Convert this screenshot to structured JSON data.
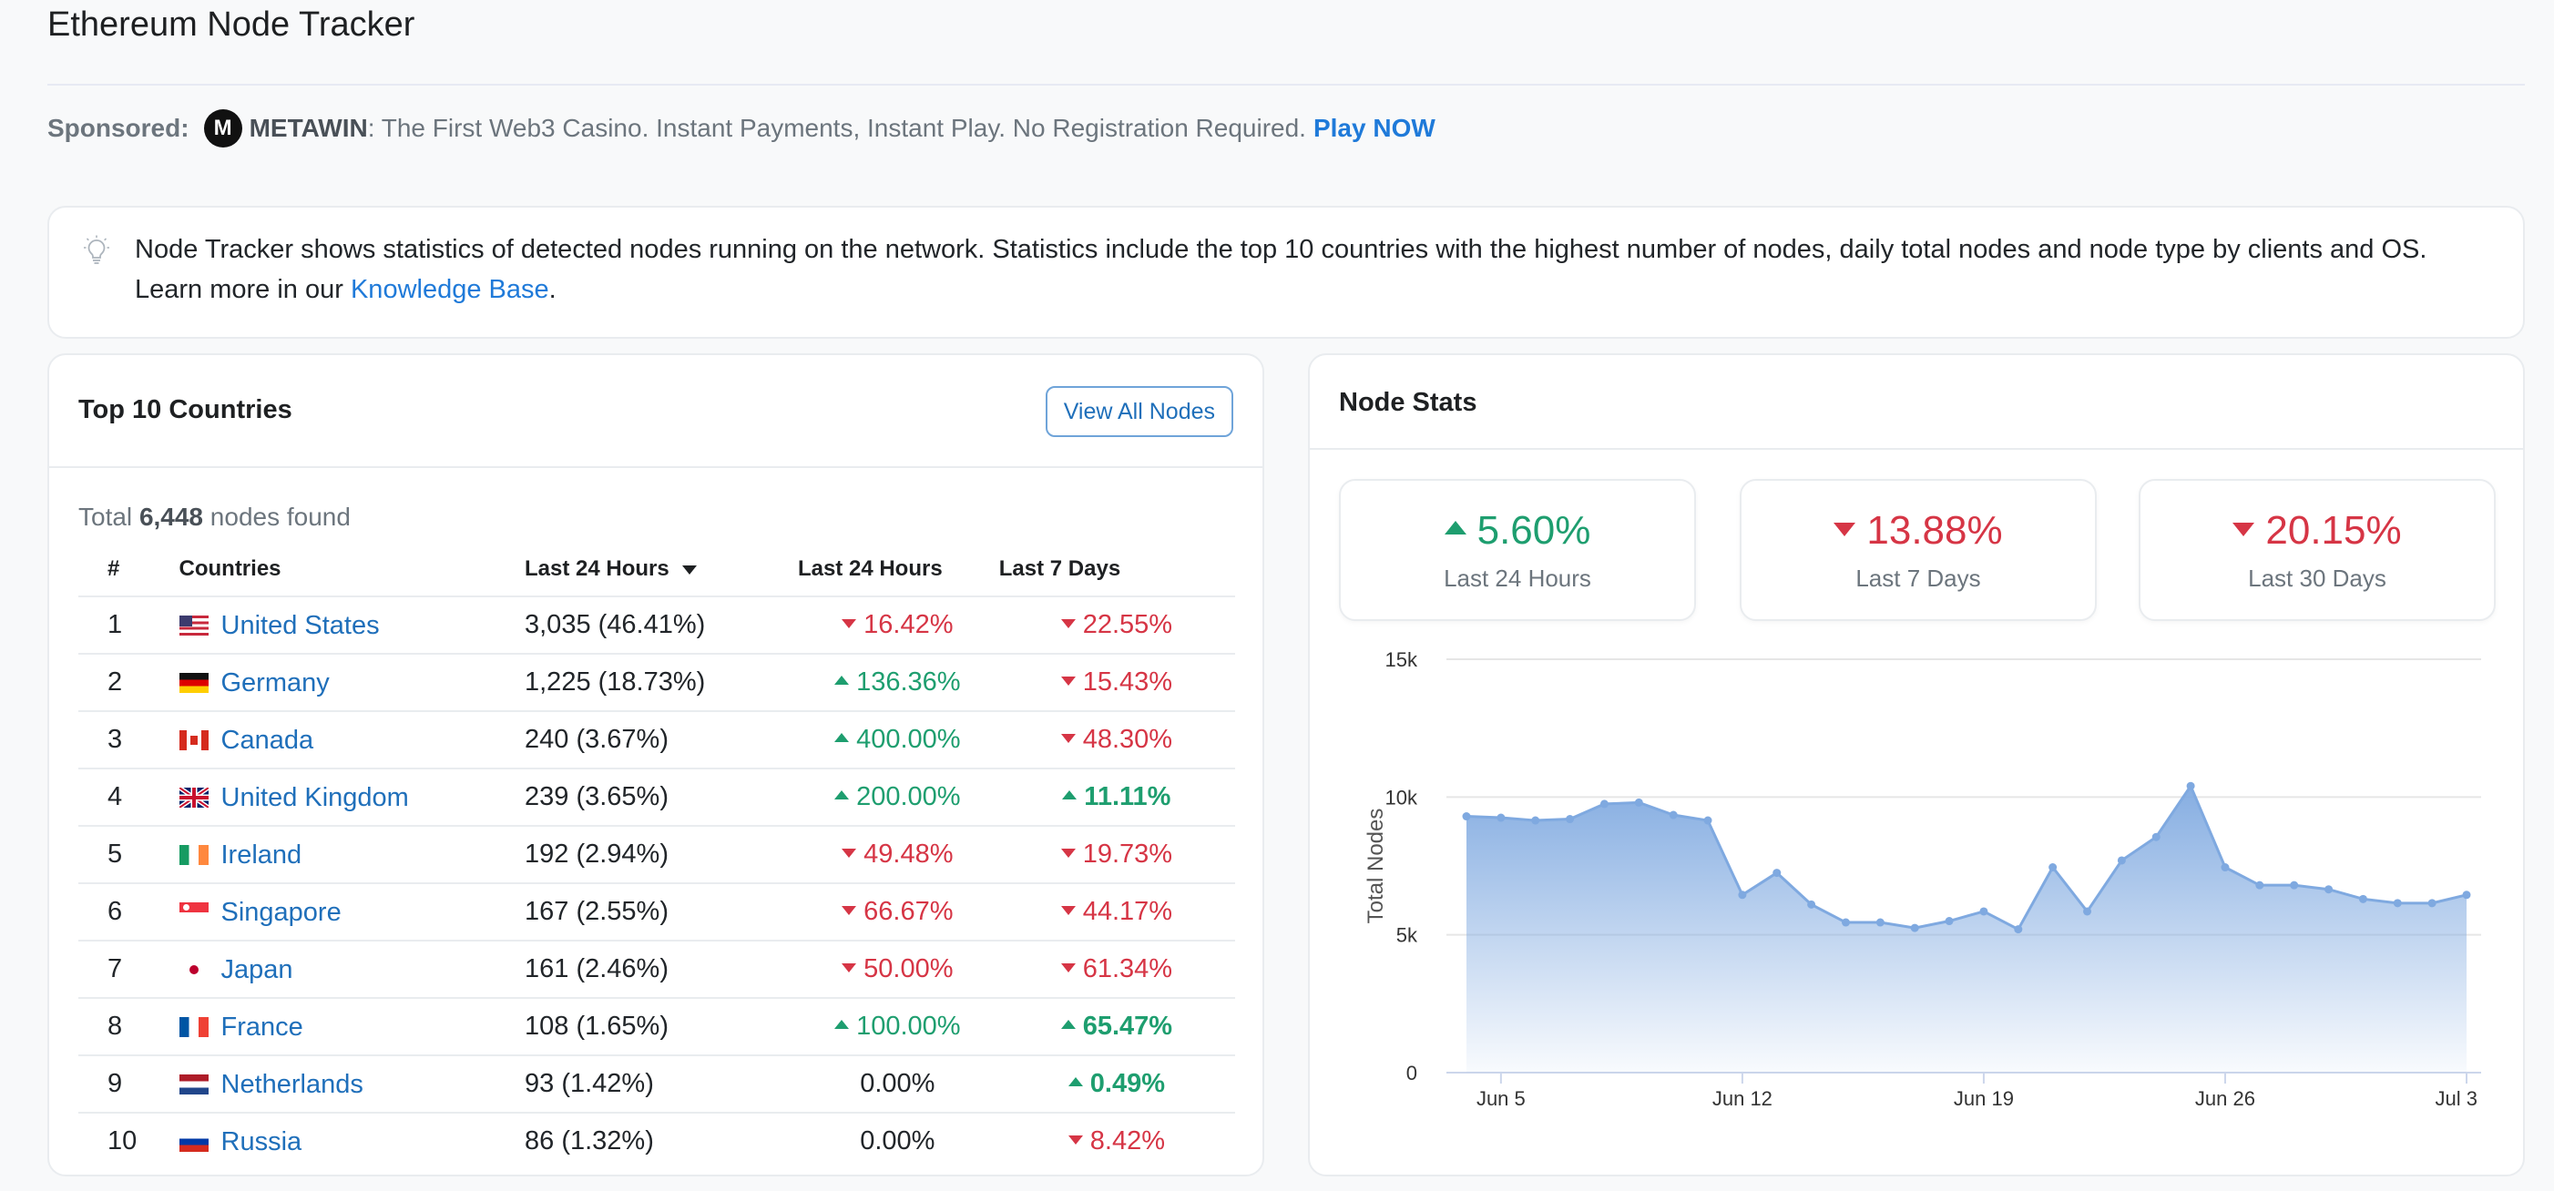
{
  "page": {
    "title": "Ethereum Node Tracker"
  },
  "sponsor": {
    "label": "Sponsored:",
    "logo_letter": "M",
    "brand": "METAWIN",
    "text": ": The First Web3 Casino. Instant Payments, Instant Play. No Registration Required.",
    "cta": "Play NOW"
  },
  "info": {
    "icon": "lightbulb-icon",
    "text_before": "Node Tracker shows statistics of detected nodes running on the network. Statistics include the top 10 countries with the highest number of nodes, daily total nodes and node type by clients and OS. Learn more in our ",
    "link": "Knowledge Base",
    "text_after": "."
  },
  "countries_card": {
    "title": "Top 10 Countries",
    "button": "View All Nodes",
    "total_prefix": "Total ",
    "total_count": "6,448",
    "total_suffix": " nodes found",
    "headers": {
      "num": "#",
      "country": "Countries",
      "nodes": "Last 24 Hours",
      "pct24": "Last 24 Hours",
      "pct7": "Last 7 Days"
    },
    "rows": [
      {
        "num": "1",
        "country": "United States",
        "flag": "us",
        "nodes": "3,035 (46.41%)",
        "p24": "16.42%",
        "p24_dir": "down",
        "p7": "22.55%",
        "p7_dir": "down"
      },
      {
        "num": "2",
        "country": "Germany",
        "flag": "de",
        "nodes": "1,225 (18.73%)",
        "p24": "136.36%",
        "p24_dir": "up",
        "p7": "15.43%",
        "p7_dir": "down"
      },
      {
        "num": "3",
        "country": "Canada",
        "flag": "ca",
        "nodes": "240 (3.67%)",
        "p24": "400.00%",
        "p24_dir": "up",
        "p7": "48.30%",
        "p7_dir": "down"
      },
      {
        "num": "4",
        "country": "United Kingdom",
        "flag": "gb",
        "nodes": "239 (3.65%)",
        "p24": "200.00%",
        "p24_dir": "up",
        "p7": "11.11%",
        "p7_dir": "up"
      },
      {
        "num": "5",
        "country": "Ireland",
        "flag": "ie",
        "nodes": "192 (2.94%)",
        "p24": "49.48%",
        "p24_dir": "down",
        "p7": "19.73%",
        "p7_dir": "down"
      },
      {
        "num": "6",
        "country": "Singapore",
        "flag": "sg",
        "nodes": "167 (2.55%)",
        "p24": "66.67%",
        "p24_dir": "down",
        "p7": "44.17%",
        "p7_dir": "down"
      },
      {
        "num": "7",
        "country": "Japan",
        "flag": "jp",
        "nodes": "161 (2.46%)",
        "p24": "50.00%",
        "p24_dir": "down",
        "p7": "61.34%",
        "p7_dir": "down"
      },
      {
        "num": "8",
        "country": "France",
        "flag": "fr",
        "nodes": "108 (1.65%)",
        "p24": "100.00%",
        "p24_dir": "up",
        "p7": "65.47%",
        "p7_dir": "up"
      },
      {
        "num": "9",
        "country": "Netherlands",
        "flag": "nl",
        "nodes": "93 (1.42%)",
        "p24": "0.00%",
        "p24_dir": "flat",
        "p7": "0.49%",
        "p7_dir": "up"
      },
      {
        "num": "10",
        "country": "Russia",
        "flag": "ru",
        "nodes": "86 (1.32%)",
        "p24": "0.00%",
        "p24_dir": "flat",
        "p7": "8.42%",
        "p7_dir": "down"
      }
    ]
  },
  "stats_card": {
    "title": "Node Stats",
    "stats": [
      {
        "value": "5.60%",
        "dir": "up",
        "label": "Last 24 Hours"
      },
      {
        "value": "13.88%",
        "dir": "down",
        "label": "Last 7 Days"
      },
      {
        "value": "20.15%",
        "dir": "down",
        "label": "Last 30 Days"
      }
    ]
  },
  "colors": {
    "up": "#1e9e6f",
    "down": "#d63545",
    "link": "#1f6fba",
    "area": "#7fa9e0"
  },
  "chart_data": {
    "type": "area",
    "ylabel": "Total Nodes",
    "xlabel": "",
    "ylim": [
      0,
      15000
    ],
    "yticks": [
      "0",
      "5k",
      "10k",
      "15k"
    ],
    "yticks_values": [
      0,
      5000,
      10000,
      15000
    ],
    "xtick_labels": [
      "Jun 5",
      "Jun 12",
      "Jun 19",
      "Jun 26",
      "Jul 3"
    ],
    "xtick_days": [
      5,
      12,
      19,
      26,
      33
    ],
    "grid": true,
    "x_days": [
      4,
      5,
      6,
      7,
      8,
      9,
      10,
      11,
      12,
      13,
      14,
      15,
      16,
      17,
      18,
      19,
      20,
      21,
      22,
      23,
      24,
      25,
      26,
      27,
      28,
      29,
      30,
      31,
      32,
      33
    ],
    "x_labels_note": "days of June; 31-33 = Jul 1-3",
    "values": [
      9300,
      9250,
      9150,
      9200,
      9750,
      9800,
      9350,
      9150,
      6450,
      7250,
      6100,
      5450,
      5450,
      5250,
      5500,
      5850,
      5200,
      7450,
      5850,
      7700,
      8550,
      10400,
      7450,
      6800,
      6800,
      6650,
      6300,
      6150,
      6150,
      6450
    ]
  }
}
